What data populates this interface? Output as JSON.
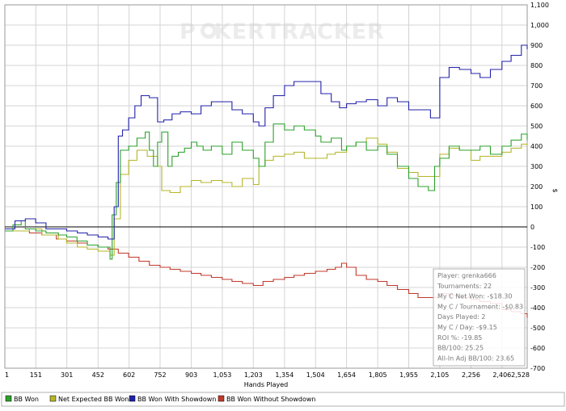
{
  "watermark": {
    "brand_left": "P",
    "brand_mid": "KER",
    "brand_right": "TRACKER"
  },
  "chart_data": {
    "type": "line",
    "title": "",
    "xlabel": "Hands Played",
    "ylabel": "$",
    "xlim": [
      1,
      2528
    ],
    "ylim": [
      -700,
      1100
    ],
    "x_ticks": [
      "1",
      "151",
      "301",
      "452",
      "602",
      "752",
      "903",
      "1,053",
      "1,203",
      "1,354",
      "1,504",
      "1,654",
      "1,805",
      "1,955",
      "2,105",
      "2,256",
      "2,406",
      "2,528"
    ],
    "x_tick_values": [
      1,
      151,
      301,
      452,
      602,
      752,
      903,
      1053,
      1203,
      1354,
      1504,
      1654,
      1805,
      1955,
      2105,
      2256,
      2406,
      2528
    ],
    "y_ticks": [
      "1,100",
      "1,000",
      "900",
      "800",
      "700",
      "600",
      "500",
      "400",
      "300",
      "200",
      "100",
      "0",
      "-100",
      "-200",
      "-300",
      "-400",
      "-500",
      "-600",
      "-700"
    ],
    "y_tick_values": [
      1100,
      1000,
      900,
      800,
      700,
      600,
      500,
      400,
      300,
      200,
      100,
      0,
      -100,
      -200,
      -300,
      -400,
      -500,
      -600,
      -700
    ],
    "grid": true,
    "legend_position": "bottom",
    "colors": {
      "bb_won": "#2ca02c",
      "net_expected": "#b5b52a",
      "showdown": "#2222aa",
      "non_showdown": "#c0392b"
    },
    "series": [
      {
        "name": "BB Won",
        "color": "#2ca02c",
        "points": [
          [
            1,
            -20
          ],
          [
            40,
            10
          ],
          [
            80,
            30
          ],
          [
            100,
            -10
          ],
          [
            150,
            -20
          ],
          [
            200,
            -30
          ],
          [
            260,
            -40
          ],
          [
            300,
            -50
          ],
          [
            350,
            -70
          ],
          [
            400,
            -90
          ],
          [
            452,
            -100
          ],
          [
            510,
            -160
          ],
          [
            520,
            60
          ],
          [
            540,
            220
          ],
          [
            560,
            380
          ],
          [
            600,
            400
          ],
          [
            640,
            440
          ],
          [
            680,
            470
          ],
          [
            700,
            380
          ],
          [
            720,
            300
          ],
          [
            740,
            420
          ],
          [
            760,
            470
          ],
          [
            790,
            300
          ],
          [
            810,
            350
          ],
          [
            840,
            370
          ],
          [
            870,
            390
          ],
          [
            903,
            420
          ],
          [
            930,
            400
          ],
          [
            960,
            380
          ],
          [
            1000,
            400
          ],
          [
            1053,
            360
          ],
          [
            1100,
            420
          ],
          [
            1150,
            380
          ],
          [
            1203,
            340
          ],
          [
            1230,
            300
          ],
          [
            1260,
            420
          ],
          [
            1300,
            510
          ],
          [
            1354,
            480
          ],
          [
            1400,
            500
          ],
          [
            1450,
            480
          ],
          [
            1504,
            450
          ],
          [
            1530,
            420
          ],
          [
            1580,
            440
          ],
          [
            1630,
            380
          ],
          [
            1654,
            400
          ],
          [
            1700,
            420
          ],
          [
            1750,
            380
          ],
          [
            1805,
            400
          ],
          [
            1850,
            360
          ],
          [
            1900,
            300
          ],
          [
            1955,
            240
          ],
          [
            2000,
            200
          ],
          [
            2050,
            180
          ],
          [
            2080,
            300
          ],
          [
            2105,
            340
          ],
          [
            2150,
            400
          ],
          [
            2200,
            380
          ],
          [
            2256,
            380
          ],
          [
            2300,
            400
          ],
          [
            2350,
            360
          ],
          [
            2406,
            400
          ],
          [
            2450,
            430
          ],
          [
            2500,
            460
          ],
          [
            2528,
            430
          ]
        ]
      },
      {
        "name": "Net Expected BB Won",
        "color": "#b5b52a",
        "points": [
          [
            1,
            -20
          ],
          [
            60,
            -20
          ],
          [
            120,
            -10
          ],
          [
            180,
            -40
          ],
          [
            260,
            -60
          ],
          [
            300,
            -80
          ],
          [
            352,
            -100
          ],
          [
            400,
            -110
          ],
          [
            452,
            -120
          ],
          [
            510,
            -140
          ],
          [
            530,
            40
          ],
          [
            560,
            260
          ],
          [
            600,
            330
          ],
          [
            640,
            380
          ],
          [
            690,
            350
          ],
          [
            740,
            300
          ],
          [
            760,
            180
          ],
          [
            800,
            170
          ],
          [
            850,
            200
          ],
          [
            903,
            230
          ],
          [
            950,
            220
          ],
          [
            1000,
            230
          ],
          [
            1053,
            220
          ],
          [
            1100,
            200
          ],
          [
            1150,
            240
          ],
          [
            1203,
            210
          ],
          [
            1230,
            300
          ],
          [
            1260,
            330
          ],
          [
            1300,
            350
          ],
          [
            1354,
            360
          ],
          [
            1400,
            370
          ],
          [
            1450,
            340
          ],
          [
            1504,
            340
          ],
          [
            1560,
            360
          ],
          [
            1600,
            370
          ],
          [
            1654,
            400
          ],
          [
            1700,
            420
          ],
          [
            1750,
            440
          ],
          [
            1805,
            410
          ],
          [
            1850,
            370
          ],
          [
            1900,
            290
          ],
          [
            1955,
            270
          ],
          [
            2000,
            250
          ],
          [
            2060,
            250
          ],
          [
            2105,
            360
          ],
          [
            2150,
            390
          ],
          [
            2200,
            380
          ],
          [
            2256,
            330
          ],
          [
            2300,
            350
          ],
          [
            2350,
            350
          ],
          [
            2406,
            370
          ],
          [
            2450,
            390
          ],
          [
            2500,
            410
          ],
          [
            2528,
            400
          ]
        ]
      },
      {
        "name": "BB Won With Showdown",
        "color": "#2222aa",
        "points": [
          [
            1,
            -10
          ],
          [
            50,
            30
          ],
          [
            100,
            40
          ],
          [
            150,
            20
          ],
          [
            200,
            -10
          ],
          [
            260,
            -10
          ],
          [
            300,
            -20
          ],
          [
            352,
            -30
          ],
          [
            400,
            -40
          ],
          [
            452,
            -50
          ],
          [
            500,
            -60
          ],
          [
            530,
            100
          ],
          [
            550,
            450
          ],
          [
            570,
            480
          ],
          [
            600,
            540
          ],
          [
            630,
            600
          ],
          [
            660,
            650
          ],
          [
            700,
            640
          ],
          [
            740,
            520
          ],
          [
            770,
            530
          ],
          [
            810,
            560
          ],
          [
            850,
            570
          ],
          [
            903,
            560
          ],
          [
            950,
            600
          ],
          [
            1000,
            620
          ],
          [
            1053,
            620
          ],
          [
            1100,
            580
          ],
          [
            1150,
            560
          ],
          [
            1203,
            520
          ],
          [
            1230,
            500
          ],
          [
            1260,
            590
          ],
          [
            1300,
            650
          ],
          [
            1354,
            700
          ],
          [
            1400,
            720
          ],
          [
            1450,
            720
          ],
          [
            1504,
            720
          ],
          [
            1530,
            660
          ],
          [
            1580,
            620
          ],
          [
            1620,
            590
          ],
          [
            1654,
            610
          ],
          [
            1700,
            620
          ],
          [
            1750,
            630
          ],
          [
            1805,
            600
          ],
          [
            1850,
            640
          ],
          [
            1900,
            620
          ],
          [
            1955,
            580
          ],
          [
            2000,
            580
          ],
          [
            2060,
            540
          ],
          [
            2105,
            740
          ],
          [
            2150,
            790
          ],
          [
            2200,
            780
          ],
          [
            2256,
            760
          ],
          [
            2300,
            740
          ],
          [
            2350,
            780
          ],
          [
            2406,
            820
          ],
          [
            2450,
            850
          ],
          [
            2500,
            900
          ],
          [
            2528,
            880
          ]
        ]
      },
      {
        "name": "BB Won Without Showdown",
        "color": "#c0392b",
        "points": [
          [
            1,
            -20
          ],
          [
            60,
            -20
          ],
          [
            120,
            -30
          ],
          [
            180,
            -40
          ],
          [
            250,
            -60
          ],
          [
            300,
            -70
          ],
          [
            352,
            -80
          ],
          [
            400,
            -90
          ],
          [
            452,
            -100
          ],
          [
            500,
            -110
          ],
          [
            550,
            -130
          ],
          [
            600,
            -150
          ],
          [
            650,
            -170
          ],
          [
            700,
            -190
          ],
          [
            752,
            -200
          ],
          [
            800,
            -210
          ],
          [
            850,
            -220
          ],
          [
            903,
            -230
          ],
          [
            950,
            -240
          ],
          [
            1000,
            -250
          ],
          [
            1053,
            -260
          ],
          [
            1100,
            -270
          ],
          [
            1150,
            -280
          ],
          [
            1203,
            -290
          ],
          [
            1250,
            -270
          ],
          [
            1300,
            -260
          ],
          [
            1354,
            -250
          ],
          [
            1400,
            -240
          ],
          [
            1450,
            -230
          ],
          [
            1504,
            -220
          ],
          [
            1560,
            -210
          ],
          [
            1600,
            -200
          ],
          [
            1630,
            -180
          ],
          [
            1654,
            -200
          ],
          [
            1700,
            -240
          ],
          [
            1750,
            -260
          ],
          [
            1805,
            -270
          ],
          [
            1850,
            -290
          ],
          [
            1900,
            -310
          ],
          [
            1955,
            -330
          ],
          [
            2000,
            -350
          ],
          [
            2050,
            -350
          ],
          [
            2105,
            -330
          ],
          [
            2150,
            -340
          ],
          [
            2200,
            -350
          ],
          [
            2256,
            -360
          ],
          [
            2300,
            -370
          ],
          [
            2350,
            -380
          ],
          [
            2406,
            -410
          ],
          [
            2450,
            -420
          ],
          [
            2500,
            -430
          ],
          [
            2528,
            -450
          ]
        ]
      }
    ]
  },
  "info_box": {
    "lines": [
      "Player: grenka666",
      "Tournaments: 22",
      "My C Net Won: -$18.30",
      "My C / Tournament: -$0.83",
      "Days Played: 2",
      "My C / Day: -$9.15",
      "ROI %: -19.85",
      "BB/100: 25.25",
      "All-In Adj BB/100: 23.65"
    ]
  }
}
